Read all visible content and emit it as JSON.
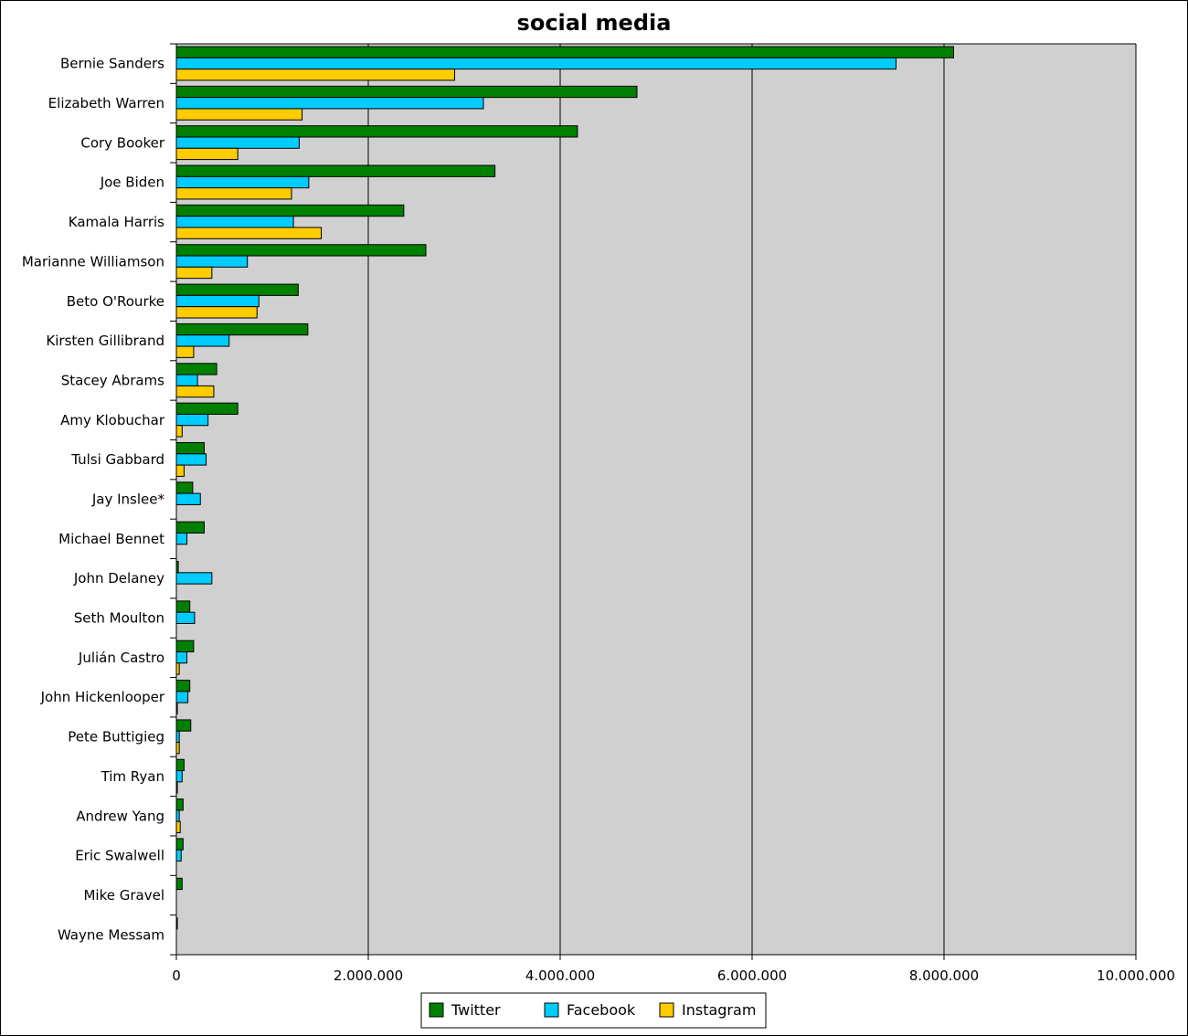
{
  "chart_data": {
    "type": "bar",
    "orientation": "horizontal",
    "title": "social media",
    "xlabel": "",
    "ylabel": "",
    "xlim": [
      0,
      10000000
    ],
    "x_ticks": [
      0,
      2000000,
      4000000,
      6000000,
      8000000,
      10000000
    ],
    "x_tick_labels": [
      "0",
      "2.000.000",
      "4.000.000",
      "6.000.000",
      "8.000.000",
      "10.000.000"
    ],
    "grid": "vertical",
    "legend_position": "bottom-center",
    "categories": [
      "Bernie Sanders",
      "Elizabeth Warren",
      "Cory Booker",
      "Joe Biden",
      "Kamala Harris",
      "Marianne Williamson",
      "Beto O'Rourke",
      "Kirsten Gillibrand",
      "Stacey Abrams",
      "Amy Klobuchar",
      "Tulsi Gabbard",
      "Jay Inslee*",
      "Michael Bennet",
      "John Delaney",
      "Seth Moulton",
      "Julián Castro",
      "John Hickenlooper",
      "Pete Buttigieg",
      "Tim Ryan",
      "Andrew Yang",
      "Eric Swalwell",
      "Mike Gravel",
      "Wayne Messam"
    ],
    "series": [
      {
        "name": "Twitter",
        "color": "#008000",
        "values": [
          8100000,
          4800000,
          4180000,
          3320000,
          2370000,
          2600000,
          1270000,
          1370000,
          420000,
          640000,
          290000,
          170000,
          290000,
          20000,
          140000,
          180000,
          140000,
          150000,
          80000,
          70000,
          70000,
          60000,
          10000
        ]
      },
      {
        "name": "Facebook",
        "color": "#00ccff",
        "values": [
          7500000,
          3200000,
          1280000,
          1380000,
          1220000,
          740000,
          860000,
          550000,
          220000,
          330000,
          310000,
          250000,
          110000,
          370000,
          190000,
          110000,
          120000,
          30000,
          60000,
          30000,
          50000,
          0,
          0
        ]
      },
      {
        "name": "Instagram",
        "color": "#ffcc00",
        "values": [
          2900000,
          1310000,
          640000,
          1200000,
          1510000,
          370000,
          840000,
          180000,
          390000,
          60000,
          80000,
          0,
          0,
          0,
          0,
          30000,
          10000,
          30000,
          10000,
          40000,
          0,
          0,
          0
        ]
      }
    ]
  }
}
